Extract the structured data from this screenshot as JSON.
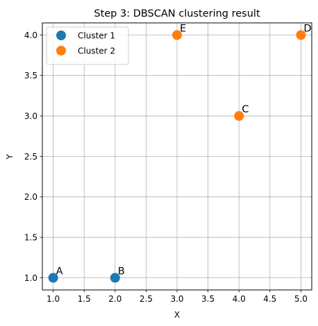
{
  "chart_data": {
    "type": "scatter",
    "title": "Step 3: DBSCAN clustering result",
    "xlabel": "X",
    "ylabel": "Y",
    "xlim": [
      0.825,
      5.175
    ],
    "ylim": [
      0.85,
      4.15
    ],
    "xticks": [
      "1.0",
      "1.5",
      "2.0",
      "2.5",
      "3.0",
      "3.5",
      "4.0",
      "4.5",
      "5.0"
    ],
    "yticks": [
      "1.0",
      "1.5",
      "2.0",
      "2.5",
      "3.0",
      "3.5",
      "4.0"
    ],
    "grid": true,
    "legend_position": "top-left",
    "series": [
      {
        "name": "Cluster 1",
        "color": "#1f77b4",
        "points": [
          {
            "x": 1,
            "y": 1,
            "label": "A"
          },
          {
            "x": 2,
            "y": 1,
            "label": "B"
          }
        ]
      },
      {
        "name": "Cluster 2",
        "color": "#ff7f0e",
        "points": [
          {
            "x": 4,
            "y": 3,
            "label": "C"
          },
          {
            "x": 5,
            "y": 4,
            "label": "D"
          },
          {
            "x": 3,
            "y": 4,
            "label": "E"
          }
        ]
      }
    ]
  }
}
